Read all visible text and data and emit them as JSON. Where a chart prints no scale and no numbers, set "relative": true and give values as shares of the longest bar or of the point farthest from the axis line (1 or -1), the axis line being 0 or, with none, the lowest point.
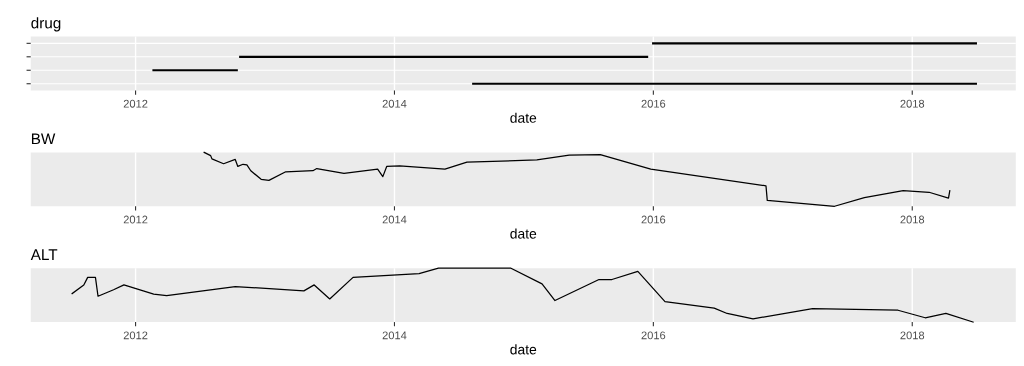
{
  "chart_data": [
    {
      "type": "bar",
      "orientation": "horizontal",
      "title": "drug",
      "xlabel": "date",
      "grid": true,
      "xlim": [
        2011.19,
        2018.8
      ],
      "xticks": [
        2012,
        2014,
        2016,
        2018
      ],
      "categories": [
        null,
        null,
        null,
        null
      ],
      "series": [
        {
          "color": "#000000",
          "base": [
            2015.99,
            2012.8,
            2012.13,
            2014.6
          ],
          "values": [
            2.51,
            3.16,
            0.66,
            3.9
          ]
        }
      ]
    },
    {
      "type": "line",
      "title": "BW",
      "xlabel": "date",
      "relative": true,
      "grid": "x",
      "xlim": [
        2011.19,
        2018.8
      ],
      "xticks": [
        2012,
        2014,
        2016,
        2018
      ],
      "series": [
        {
          "color": "#000000",
          "x": [
            2012.53,
            2012.58,
            2012.59,
            2012.68,
            2012.77,
            2012.79,
            2012.83,
            2012.86,
            2012.89,
            2012.97,
            2013.03,
            2013.16,
            2013.37,
            2013.4,
            2013.61,
            2013.87,
            2013.91,
            2013.94,
            2014.04,
            2014.39,
            2014.56,
            2015.1,
            2015.35,
            2015.59,
            2015.98,
            2016.87,
            2016.88,
            2017.4,
            2017.63,
            2017.93,
            2018.13,
            2018.28,
            2018.29
          ],
          "values": [
            1.0,
            0.94,
            0.88,
            0.79,
            0.87,
            0.74,
            0.78,
            0.77,
            0.66,
            0.5,
            0.48,
            0.64,
            0.66,
            0.7,
            0.61,
            0.69,
            0.55,
            0.74,
            0.75,
            0.69,
            0.82,
            0.86,
            0.95,
            0.96,
            0.69,
            0.38,
            0.11,
            0,
            0.16,
            0.29,
            0.26,
            0.15,
            0.29
          ]
        }
      ]
    },
    {
      "type": "line",
      "title": "ALT",
      "xlabel": "date",
      "relative": true,
      "grid": "x",
      "xlim": [
        2011.19,
        2018.8
      ],
      "xticks": [
        2012,
        2014,
        2016,
        2018
      ],
      "series": [
        {
          "color": "#000000",
          "x": [
            2011.51,
            2011.6,
            2011.63,
            2011.69,
            2011.71,
            2011.83,
            2011.91,
            2012.14,
            2012.24,
            2012.77,
            2013.3,
            2013.38,
            2013.5,
            2013.68,
            2014.19,
            2014.34,
            2014.9,
            2015.14,
            2015.24,
            2015.58,
            2015.68,
            2015.88,
            2016.09,
            2016.47,
            2016.57,
            2016.77,
            2017.23,
            2017.89,
            2018.1,
            2018.26,
            2018.47
          ],
          "values": [
            0.53,
            0.69,
            0.83,
            0.83,
            0.48,
            0.6,
            0.69,
            0.52,
            0.49,
            0.66,
            0.58,
            0.69,
            0.43,
            0.83,
            0.9,
            1,
            1,
            0.71,
            0.4,
            0.79,
            0.79,
            0.94,
            0.38,
            0.26,
            0.16,
            0.06,
            0.25,
            0.22,
            0.08,
            0.16,
            0
          ]
        }
      ]
    }
  ]
}
